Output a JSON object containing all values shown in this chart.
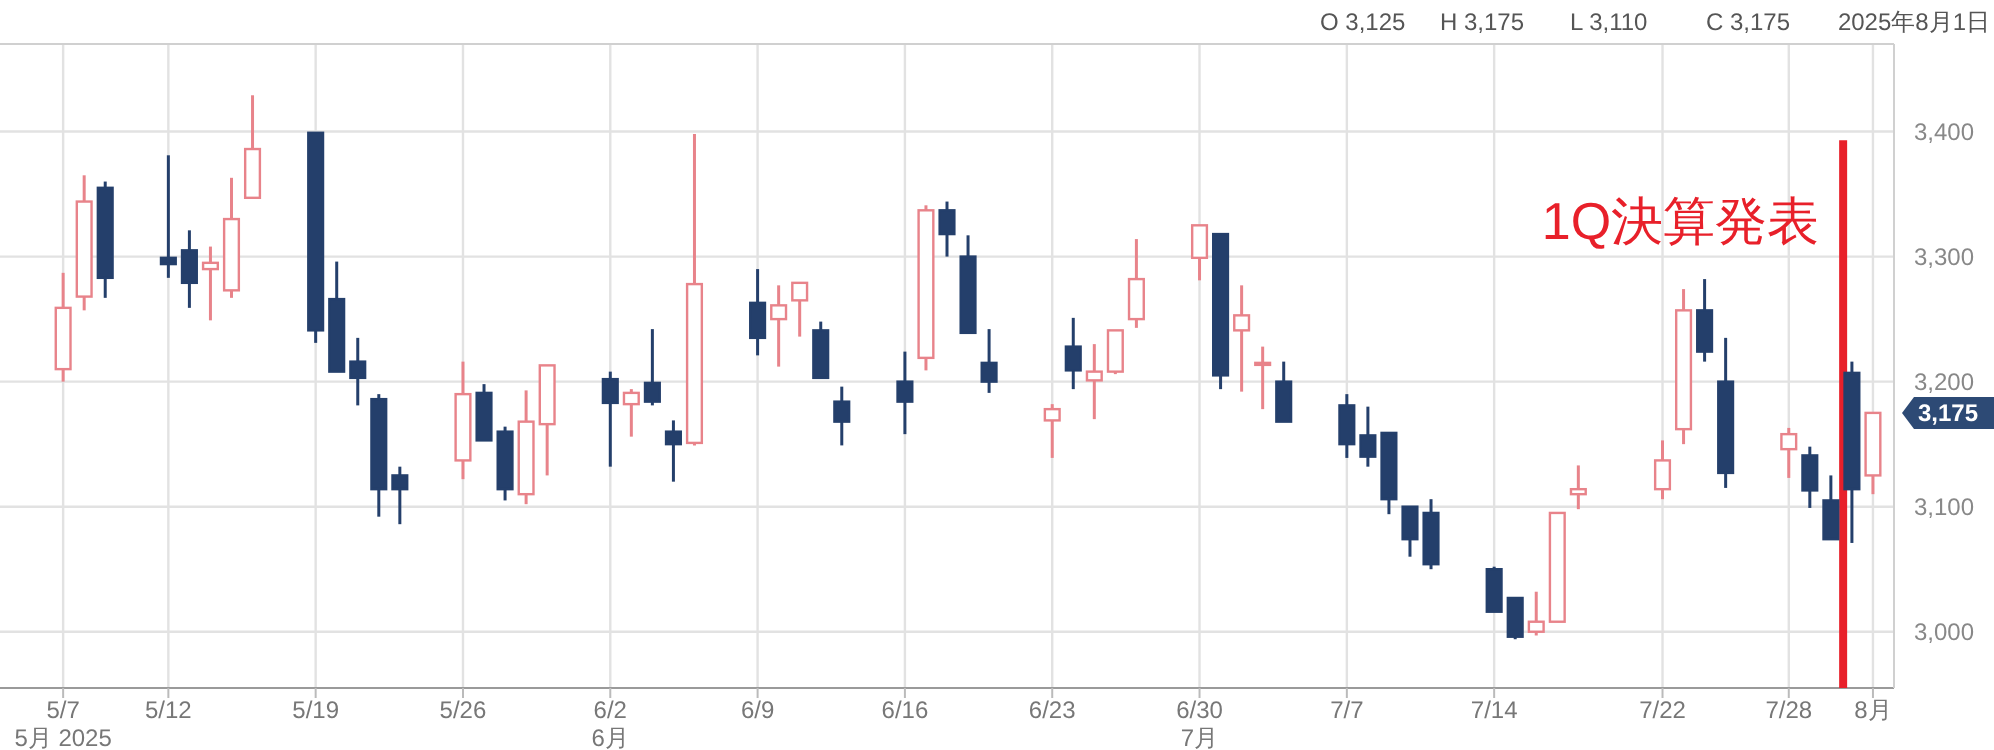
{
  "chart_data": {
    "type": "candlestick",
    "x": [
      "2025-05-07",
      "2025-05-08",
      "2025-05-09",
      "2025-05-12",
      "2025-05-13",
      "2025-05-14",
      "2025-05-15",
      "2025-05-16",
      "2025-05-19",
      "2025-05-20",
      "2025-05-21",
      "2025-05-22",
      "2025-05-23",
      "2025-05-26",
      "2025-05-27",
      "2025-05-28",
      "2025-05-29",
      "2025-05-30",
      "2025-06-02",
      "2025-06-03",
      "2025-06-04",
      "2025-06-05",
      "2025-06-06",
      "2025-06-09",
      "2025-06-10",
      "2025-06-11",
      "2025-06-12",
      "2025-06-13",
      "2025-06-16",
      "2025-06-17",
      "2025-06-18",
      "2025-06-19",
      "2025-06-20",
      "2025-06-23",
      "2025-06-24",
      "2025-06-25",
      "2025-06-26",
      "2025-06-27",
      "2025-06-30",
      "2025-07-01",
      "2025-07-02",
      "2025-07-03",
      "2025-07-04",
      "2025-07-07",
      "2025-07-08",
      "2025-07-09",
      "2025-07-10",
      "2025-07-11",
      "2025-07-14",
      "2025-07-15",
      "2025-07-16",
      "2025-07-17",
      "2025-07-18",
      "2025-07-22",
      "2025-07-23",
      "2025-07-24",
      "2025-07-25",
      "2025-07-28",
      "2025-07-29",
      "2025-07-30",
      "2025-07-31",
      "2025-08-01"
    ],
    "ohlc": [
      [
        3210,
        3287,
        3200,
        3259
      ],
      [
        3268,
        3365,
        3257,
        3344
      ],
      [
        3355,
        3360,
        3267,
        3283
      ],
      [
        3299,
        3381,
        3283,
        3294
      ],
      [
        3305,
        3321,
        3259,
        3279
      ],
      [
        3290,
        3308,
        3249,
        3295
      ],
      [
        3273,
        3363,
        3267,
        3330
      ],
      [
        3347,
        3429,
        3347,
        3386
      ],
      [
        3399,
        3399,
        3231,
        3241
      ],
      [
        3266,
        3296,
        3208,
        3208
      ],
      [
        3216,
        3235,
        3181,
        3203
      ],
      [
        3186,
        3190,
        3092,
        3114
      ],
      [
        3125,
        3132,
        3086,
        3114
      ],
      [
        3137,
        3216,
        3122,
        3190
      ],
      [
        3191,
        3198,
        3153,
        3153
      ],
      [
        3160,
        3164,
        3105,
        3114
      ],
      [
        3110,
        3193,
        3102,
        3168
      ],
      [
        3166,
        3213,
        3125,
        3213
      ],
      [
        3202,
        3208,
        3132,
        3183
      ],
      [
        3182,
        3194,
        3156,
        3191
      ],
      [
        3199,
        3242,
        3181,
        3184
      ],
      [
        3160,
        3169,
        3120,
        3150
      ],
      [
        3151,
        3398,
        3149,
        3278
      ],
      [
        3263,
        3290,
        3221,
        3235
      ],
      [
        3250,
        3277,
        3212,
        3261
      ],
      [
        3265,
        3279,
        3236,
        3279
      ],
      [
        3241,
        3248,
        3203,
        3203
      ],
      [
        3184,
        3196,
        3149,
        3168
      ],
      [
        3200,
        3224,
        3158,
        3184
      ],
      [
        3219,
        3341,
        3209,
        3337
      ],
      [
        3337,
        3344,
        3300,
        3318
      ],
      [
        3300,
        3317,
        3239,
        3239
      ],
      [
        3215,
        3242,
        3191,
        3200
      ],
      [
        3169,
        3182,
        3139,
        3178
      ],
      [
        3228,
        3251,
        3194,
        3209
      ],
      [
        3201,
        3230,
        3170,
        3208
      ],
      [
        3208,
        3241,
        3206,
        3241
      ],
      [
        3250,
        3314,
        3243,
        3282
      ],
      [
        3299,
        3325,
        3281,
        3325
      ],
      [
        3318,
        3318,
        3194,
        3205
      ],
      [
        3241,
        3277,
        3192,
        3253
      ],
      [
        3214,
        3228,
        3178,
        3215
      ],
      [
        3200,
        3216,
        3168,
        3168
      ],
      [
        3181,
        3190,
        3139,
        3150
      ],
      [
        3157,
        3180,
        3132,
        3140
      ],
      [
        3159,
        3159,
        3094,
        3106
      ],
      [
        3100,
        3100,
        3060,
        3074
      ],
      [
        3095,
        3106,
        3050,
        3054
      ],
      [
        3050,
        3052,
        3016,
        3016
      ],
      [
        3027,
        3027,
        2994,
        2996
      ],
      [
        3000,
        3032,
        2997,
        3008
      ],
      [
        3008,
        3095,
        3008,
        3095
      ],
      [
        3110,
        3133,
        3098,
        3114
      ],
      [
        3114,
        3153,
        3106,
        3137
      ],
      [
        3162,
        3274,
        3150,
        3257
      ],
      [
        3257,
        3282,
        3216,
        3224
      ],
      [
        3200,
        3235,
        3115,
        3127
      ],
      [
        3146,
        3163,
        3123,
        3158
      ],
      [
        3141,
        3148,
        3099,
        3113
      ],
      [
        3105,
        3125,
        3074,
        3074
      ],
      [
        3207,
        3216,
        3071,
        3114
      ],
      [
        3125,
        3175,
        3110,
        3175
      ]
    ],
    "colors": [
      "#e8838a",
      "#e8838a",
      "#243f6b",
      "#243f6b",
      "#243f6b",
      "#e8838a",
      "#e8838a",
      "#e8838a",
      "#243f6b",
      "#243f6b",
      "#243f6b",
      "#243f6b",
      "#243f6b",
      "#e8838a",
      "#243f6b",
      "#243f6b",
      "#e8838a",
      "#e8838a",
      "#243f6b",
      "#e8838a",
      "#243f6b",
      "#243f6b",
      "#e8838a",
      "#243f6b",
      "#e8838a",
      "#e8838a",
      "#243f6b",
      "#243f6b",
      "#243f6b",
      "#e8838a",
      "#243f6b",
      "#243f6b",
      "#243f6b",
      "#e8838a",
      "#243f6b",
      "#e8838a",
      "#e8838a",
      "#e8838a",
      "#e8838a",
      "#243f6b",
      "#e8838a",
      "#e8838a",
      "#243f6b",
      "#243f6b",
      "#243f6b",
      "#243f6b",
      "#243f6b",
      "#243f6b",
      "#243f6b",
      "#243f6b",
      "#e8838a",
      "#e8838a",
      "#e8838a",
      "#e8838a",
      "#e8838a",
      "#243f6b",
      "#243f6b",
      "#e8838a",
      "#243f6b",
      "#243f6b",
      "#243f6b",
      "#e8838a"
    ],
    "xlim": [
      "2025-05-04",
      "2025-08-02"
    ],
    "xticks": [
      {
        "value": "2025-05-07",
        "label": "5/7\n5月 2025"
      },
      {
        "value": "2025-05-12",
        "label": "5/12"
      },
      {
        "value": "2025-05-19",
        "label": "5/19"
      },
      {
        "value": "2025-05-26",
        "label": "5/26"
      },
      {
        "value": "2025-06-02",
        "label": "6/2\n6月"
      },
      {
        "value": "2025-06-09",
        "label": "6/9"
      },
      {
        "value": "2025-06-16",
        "label": "6/16"
      },
      {
        "value": "2025-06-23",
        "label": "6/23"
      },
      {
        "value": "2025-06-30",
        "label": "6/30\n7月"
      },
      {
        "value": "2025-07-07",
        "label": "7/7"
      },
      {
        "value": "2025-07-14",
        "label": "7/14"
      },
      {
        "value": "2025-07-22",
        "label": "7/22"
      },
      {
        "value": "2025-07-28",
        "label": "7/28"
      },
      {
        "value": "2025-08-01",
        "label": "8月"
      }
    ],
    "ylim": [
      2955,
      3470
    ],
    "yticks": [
      {
        "value": 3000,
        "label": "3,000"
      },
      {
        "value": 3100,
        "label": "3,100"
      },
      {
        "value": 3200,
        "label": "3,200"
      },
      {
        "value": 3300,
        "label": "3,300"
      },
      {
        "value": 3400,
        "label": "3,400"
      }
    ],
    "grid": true,
    "ref_lines": [
      {
        "axis": "x",
        "value": "2025-07-30T14:00",
        "label": "1Q決算発表",
        "color": "#e8202a"
      }
    ],
    "annotations": [
      "O 3,125",
      "H 3,175",
      "L 3,110",
      "C 3,175",
      "2025年8月1日",
      "3,175"
    ]
  }
}
